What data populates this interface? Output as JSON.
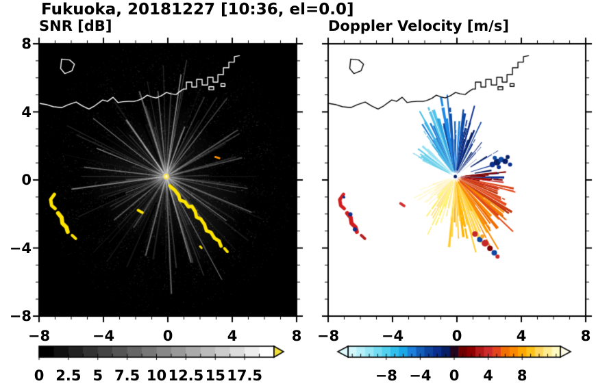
{
  "title": "Fukuoka, 20181227 [10:36, el=0.0]",
  "chart_data": {
    "type": "heatmap",
    "subtype": "radar_ppi_pair",
    "x_range": [
      -8,
      8
    ],
    "y_range": [
      -8,
      8
    ],
    "radar_center": [
      -0.1,
      0.2
    ],
    "panels": [
      {
        "title": "SNR [dB]",
        "background": "#000000",
        "coast_color": "#ffffff",
        "xtick_values": [
          -8,
          -4,
          0,
          4,
          8
        ],
        "xtick_labels": [
          "−8",
          "−4",
          "0",
          "4",
          "8"
        ],
        "ytick_values": [
          8,
          4,
          0,
          -4,
          -8
        ],
        "ytick_labels": [
          "8",
          "4",
          "0",
          "−4",
          "−8"
        ],
        "colorbar": {
          "min": 0,
          "max": 20,
          "tick_values": [
            0,
            2.5,
            5,
            7.5,
            10,
            12.5,
            15,
            17.5
          ],
          "tick_labels": [
            "0",
            "2.5",
            "5",
            "7.5",
            "10",
            "12.5",
            "15",
            "17.5"
          ],
          "scale": "black-to-white",
          "over_color": "#f2df3a"
        },
        "bright_ray_angles": [
          8,
          22,
          40,
          58,
          76,
          97,
          112,
          124,
          138,
          151,
          163,
          178,
          196,
          214,
          231,
          249,
          262,
          277,
          291,
          308,
          324,
          342,
          355
        ],
        "haze_sectors": [
          {
            "a0": -20,
            "a1": 20,
            "r": 4.8,
            "alpha": 0.06
          },
          {
            "a0": 25,
            "a1": 60,
            "r": 4.0,
            "alpha": 0.05
          },
          {
            "a0": 60,
            "a1": 95,
            "r": 3.5,
            "alpha": 0.04
          },
          {
            "a0": 95,
            "a1": 130,
            "r": 5.5,
            "alpha": 0.07
          },
          {
            "a0": 130,
            "a1": 165,
            "r": 6.2,
            "alpha": 0.08
          },
          {
            "a0": 165,
            "a1": 200,
            "r": 4.5,
            "alpha": 0.05
          },
          {
            "a0": 205,
            "a1": 245,
            "r": 4.8,
            "alpha": 0.05
          },
          {
            "a0": 250,
            "a1": 290,
            "r": 5.2,
            "alpha": 0.06
          },
          {
            "a0": 295,
            "a1": 335,
            "r": 4.3,
            "alpha": 0.05
          }
        ],
        "strong_echoes": [
          {
            "pts": [
              [
                -7.05,
                -0.85
              ],
              [
                -7.28,
                -1.15
              ],
              [
                -7.22,
                -1.5
              ],
              [
                -7.0,
                -1.68
              ]
            ],
            "w": 5,
            "color": "#ffe400"
          },
          {
            "pts": [
              [
                -6.82,
                -1.95
              ],
              [
                -6.6,
                -2.2
              ],
              [
                -6.55,
                -2.55
              ],
              [
                -6.3,
                -2.78
              ],
              [
                -6.22,
                -3.05
              ]
            ],
            "w": 6,
            "color": "#ffe400"
          },
          {
            "pts": [
              [
                -5.95,
                -3.25
              ],
              [
                -5.72,
                -3.45
              ]
            ],
            "w": 4,
            "color": "#ffe400"
          },
          {
            "pts": [
              [
                -1.85,
                -1.78
              ],
              [
                -1.58,
                -1.92
              ]
            ],
            "w": 4,
            "color": "#ffe400"
          },
          {
            "pts": [
              [
                0.12,
                -0.35
              ],
              [
                0.45,
                -0.62
              ],
              [
                0.68,
                -0.9
              ],
              [
                0.75,
                -1.18
              ],
              [
                1.05,
                -1.28
              ],
              [
                1.28,
                -1.58
              ],
              [
                1.5,
                -1.55
              ],
              [
                1.7,
                -1.85
              ],
              [
                1.78,
                -2.18
              ],
              [
                2.05,
                -2.3
              ],
              [
                2.28,
                -2.62
              ],
              [
                2.4,
                -2.98
              ],
              [
                2.68,
                -3.08
              ],
              [
                2.9,
                -3.42
              ],
              [
                3.18,
                -3.58
              ],
              [
                3.3,
                -3.88
              ]
            ],
            "w": 5,
            "color": "#ffe400"
          },
          {
            "pts": [
              [
                3.52,
                -4.02
              ],
              [
                3.7,
                -4.22
              ]
            ],
            "w": 4,
            "color": "#ffe400"
          },
          {
            "pts": [
              [
                2.0,
                -3.9
              ],
              [
                2.1,
                -4.0
              ]
            ],
            "w": 3,
            "color": "#ffe400"
          },
          {
            "pts": [
              [
                2.95,
                1.35
              ],
              [
                3.2,
                1.28
              ]
            ],
            "w": 3,
            "color": "#ff9100"
          }
        ]
      },
      {
        "title": "Doppler Velocity [m/s]",
        "background": "#ffffff",
        "coast_color": "#000000",
        "xtick_values": [
          -8,
          -4,
          0,
          4,
          8
        ],
        "xtick_labels": [
          "−8",
          "−4",
          "0",
          "4",
          "8"
        ],
        "ytick_values": [
          8,
          4,
          0,
          -4,
          -8
        ],
        "ytick_labels": [],
        "colorbar": {
          "min": -12.5,
          "max": 12.5,
          "tick_values": [
            -8,
            -4,
            0,
            4,
            8
          ],
          "tick_labels": [
            "−8",
            "−4",
            "0",
            "4",
            "8"
          ],
          "stops": [
            [
              0,
              "#e0fbff"
            ],
            [
              0.08,
              "#a6ecf7"
            ],
            [
              0.17,
              "#59d4f0"
            ],
            [
              0.25,
              "#19b1e8"
            ],
            [
              0.29,
              "#1e88e5"
            ],
            [
              0.33,
              "#1565c0"
            ],
            [
              0.375,
              "#0d47a1"
            ],
            [
              0.42,
              "#0a2f8c"
            ],
            [
              0.46,
              "#061f66"
            ],
            [
              0.495,
              "#0a0a3c"
            ],
            [
              0.505,
              "#3d0000"
            ],
            [
              0.54,
              "#700000"
            ],
            [
              0.58,
              "#8e0000"
            ],
            [
              0.625,
              "#b71c1c"
            ],
            [
              0.667,
              "#d32f2f"
            ],
            [
              0.71,
              "#e64a19"
            ],
            [
              0.75,
              "#f57c00"
            ],
            [
              0.79,
              "#fb8c00"
            ],
            [
              0.833,
              "#ffb300"
            ],
            [
              0.875,
              "#ffca28"
            ],
            [
              0.917,
              "#ffe082"
            ],
            [
              0.96,
              "#fff59d"
            ],
            [
              1,
              "#fffde7"
            ]
          ]
        },
        "fan_bands_negative": [
          {
            "a0": -66,
            "a1": -38,
            "rmax": 3.0,
            "colors": [
              "#bdf0f7",
              "#8fe0f2",
              "#64cdea"
            ],
            "density": 0.8
          },
          {
            "a0": -38,
            "a1": -14,
            "rmax": 4.2,
            "colors": [
              "#55c4ea",
              "#2da4e2",
              "#1d7fd4"
            ],
            "density": 0.85
          },
          {
            "a0": -14,
            "a1": 10,
            "rmax": 4.5,
            "colors": [
              "#1e88e5",
              "#1565c0",
              "#0d47a1"
            ],
            "density": 0.85
          },
          {
            "a0": 10,
            "a1": 30,
            "rmax": 3.6,
            "colors": [
              "#0d47a1",
              "#0a2f8c",
              "#082066"
            ],
            "density": 0.8
          },
          {
            "a0": 30,
            "a1": 52,
            "rmax": 2.7,
            "colors": [
              "#0a2f8c",
              "#061f66"
            ],
            "density": 0.7
          },
          {
            "a0": 58,
            "a1": 92,
            "rmin": 0.9,
            "rmax": 3.3,
            "colors": [
              "#0a2f8c",
              "#051a5e",
              "#123a9e"
            ],
            "density": 0.5
          }
        ],
        "fan_bands_positive": [
          {
            "a0": 84,
            "a1": 108,
            "rmin": 0.3,
            "rmax": 3.1,
            "colors": [
              "#7f0000",
              "#9a0007",
              "#c62828"
            ],
            "density": 0.75
          },
          {
            "a0": 100,
            "a1": 132,
            "rmax": 4.1,
            "colors": [
              "#d84315",
              "#e64a19",
              "#bf360c"
            ],
            "density": 0.85
          },
          {
            "a0": 124,
            "a1": 152,
            "rmax": 4.6,
            "colors": [
              "#f57c00",
              "#fb8c00",
              "#ef6c00"
            ],
            "density": 0.85
          },
          {
            "a0": 148,
            "a1": 186,
            "rmax": 4.2,
            "colors": [
              "#ffb300",
              "#ffca28",
              "#ffd54f"
            ],
            "density": 0.85
          },
          {
            "a0": 182,
            "a1": 226,
            "rmax": 3.3,
            "colors": [
              "#ffe082",
              "#fff59d",
              "#ffee58"
            ],
            "density": 0.8
          },
          {
            "a0": 222,
            "a1": 252,
            "rmax": 2.2,
            "colors": [
              "#fff9c4",
              "#ffecb3"
            ],
            "density": 0.6
          }
        ],
        "spikes": [
          {
            "a": -30,
            "r0": 0.4,
            "r1": 4.4,
            "w": 2,
            "color": "#49bce8"
          },
          {
            "a": -6,
            "r0": 0.4,
            "r1": 4.8,
            "w": 2,
            "color": "#1565c0"
          },
          {
            "a": 16,
            "r0": 0.4,
            "r1": 4.3,
            "w": 2,
            "color": "#0a2f8c"
          },
          {
            "a": 132,
            "r0": 0.4,
            "r1": 4.8,
            "w": 2,
            "color": "#e64a19"
          },
          {
            "a": 148,
            "r0": 0.4,
            "r1": 5.0,
            "w": 2,
            "color": "#fb8c00"
          },
          {
            "a": 164,
            "r0": 0.4,
            "r1": 4.6,
            "w": 2,
            "color": "#ffca28"
          }
        ],
        "echo_arcs": [
          {
            "pts": [
              [
                -7.05,
                -0.85
              ],
              [
                -7.28,
                -1.15
              ],
              [
                -7.22,
                -1.5
              ],
              [
                -7.0,
                -1.68
              ]
            ],
            "w": 5,
            "color": "#cf1d1d"
          },
          {
            "pts": [
              [
                -6.82,
                -1.95
              ],
              [
                -6.6,
                -2.2
              ],
              [
                -6.55,
                -2.55
              ],
              [
                -6.3,
                -2.78
              ],
              [
                -6.22,
                -3.05
              ]
            ],
            "w": 6,
            "color": "#cf1d1d"
          },
          {
            "pts": [
              [
                -5.95,
                -3.25
              ],
              [
                -5.72,
                -3.45
              ]
            ],
            "w": 4,
            "color": "#b71c1c"
          },
          {
            "pts": [
              [
                -3.5,
                -1.38
              ],
              [
                -3.28,
                -1.52
              ]
            ],
            "w": 4,
            "color": "#d32f2f"
          }
        ],
        "dots": [
          [
            2.2,
            0.9,
            4,
            "#0a2f8c"
          ],
          [
            2.5,
            1.05,
            5,
            "#082066"
          ],
          [
            2.75,
            1.2,
            4,
            "#0d47a1"
          ],
          [
            3.0,
            1.1,
            4,
            "#082066"
          ],
          [
            2.6,
            0.75,
            3,
            "#0a2f8c"
          ],
          [
            3.15,
            1.35,
            3,
            "#082066"
          ],
          [
            2.35,
            1.3,
            3,
            "#0d47a1"
          ],
          [
            3.3,
            0.9,
            3,
            "#0a2f8c"
          ],
          [
            -6.62,
            -2.02,
            3,
            "#0d2f8c"
          ],
          [
            -6.34,
            -2.9,
            3,
            "#0d2f8c"
          ],
          [
            -7.02,
            -1.02,
            2,
            "#0d2f8c"
          ],
          [
            1.12,
            -3.18,
            4,
            "#c62828"
          ],
          [
            1.42,
            -3.5,
            4,
            "#0d47a1"
          ],
          [
            1.75,
            -3.72,
            5,
            "#c62828"
          ],
          [
            2.05,
            -4.02,
            4,
            "#7f0000"
          ],
          [
            2.32,
            -4.28,
            4,
            "#0d47a1"
          ],
          [
            1.58,
            -3.32,
            3,
            "#f9a825"
          ],
          [
            2.52,
            -4.5,
            3,
            "#c62828"
          ]
        ]
      }
    ],
    "coastline": {
      "main": [
        [
          -8.0,
          4.5
        ],
        [
          -7.5,
          4.42
        ],
        [
          -7.1,
          4.3
        ],
        [
          -6.6,
          4.25
        ],
        [
          -6.2,
          4.42
        ],
        [
          -5.7,
          4.58
        ],
        [
          -5.3,
          4.35
        ],
        [
          -4.9,
          4.17
        ],
        [
          -4.55,
          4.35
        ],
        [
          -4.05,
          4.7
        ],
        [
          -3.75,
          4.62
        ],
        [
          -3.4,
          4.86
        ],
        [
          -3.1,
          4.55
        ],
        [
          -2.8,
          4.6
        ],
        [
          -2.45,
          4.62
        ],
        [
          -2.1,
          4.62
        ],
        [
          -1.9,
          4.66
        ],
        [
          -1.55,
          4.8
        ],
        [
          -1.28,
          4.98
        ],
        [
          -1.0,
          4.88
        ],
        [
          -0.72,
          4.82
        ],
        [
          -0.4,
          4.95
        ],
        [
          -0.09,
          5.14
        ],
        [
          0.2,
          5.06
        ],
        [
          0.51,
          5.02
        ],
        [
          0.75,
          5.2
        ],
        [
          0.98,
          5.34
        ],
        [
          1.15,
          5.34
        ],
        [
          1.15,
          5.75
        ],
        [
          1.49,
          5.75
        ],
        [
          1.49,
          5.46
        ],
        [
          1.79,
          5.46
        ],
        [
          1.79,
          5.91
        ],
        [
          2.13,
          5.91
        ],
        [
          2.13,
          5.58
        ],
        [
          2.47,
          5.58
        ],
        [
          2.47,
          6.03
        ],
        [
          2.81,
          6.03
        ],
        [
          2.81,
          5.75
        ],
        [
          3.11,
          5.75
        ],
        [
          3.11,
          6.19
        ],
        [
          3.45,
          6.19
        ],
        [
          3.45,
          6.59
        ],
        [
          3.79,
          6.59
        ],
        [
          3.79,
          6.92
        ],
        [
          4.13,
          6.92
        ],
        [
          4.13,
          7.24
        ],
        [
          4.45,
          7.3
        ]
      ],
      "island": [
        [
          -6.6,
          7.1
        ],
        [
          -6.1,
          7.05
        ],
        [
          -5.8,
          6.8
        ],
        [
          -5.95,
          6.42
        ],
        [
          -6.4,
          6.25
        ],
        [
          -6.66,
          6.55
        ],
        [
          -6.6,
          7.1
        ]
      ],
      "piers": [
        [
          [
            2.55,
            5.3
          ],
          [
            2.85,
            5.3
          ],
          [
            2.85,
            5.48
          ],
          [
            2.55,
            5.48
          ],
          [
            2.55,
            5.3
          ]
        ],
        [
          [
            3.3,
            5.5
          ],
          [
            3.55,
            5.5
          ],
          [
            3.55,
            5.66
          ],
          [
            3.3,
            5.66
          ],
          [
            3.3,
            5.5
          ]
        ]
      ]
    }
  }
}
